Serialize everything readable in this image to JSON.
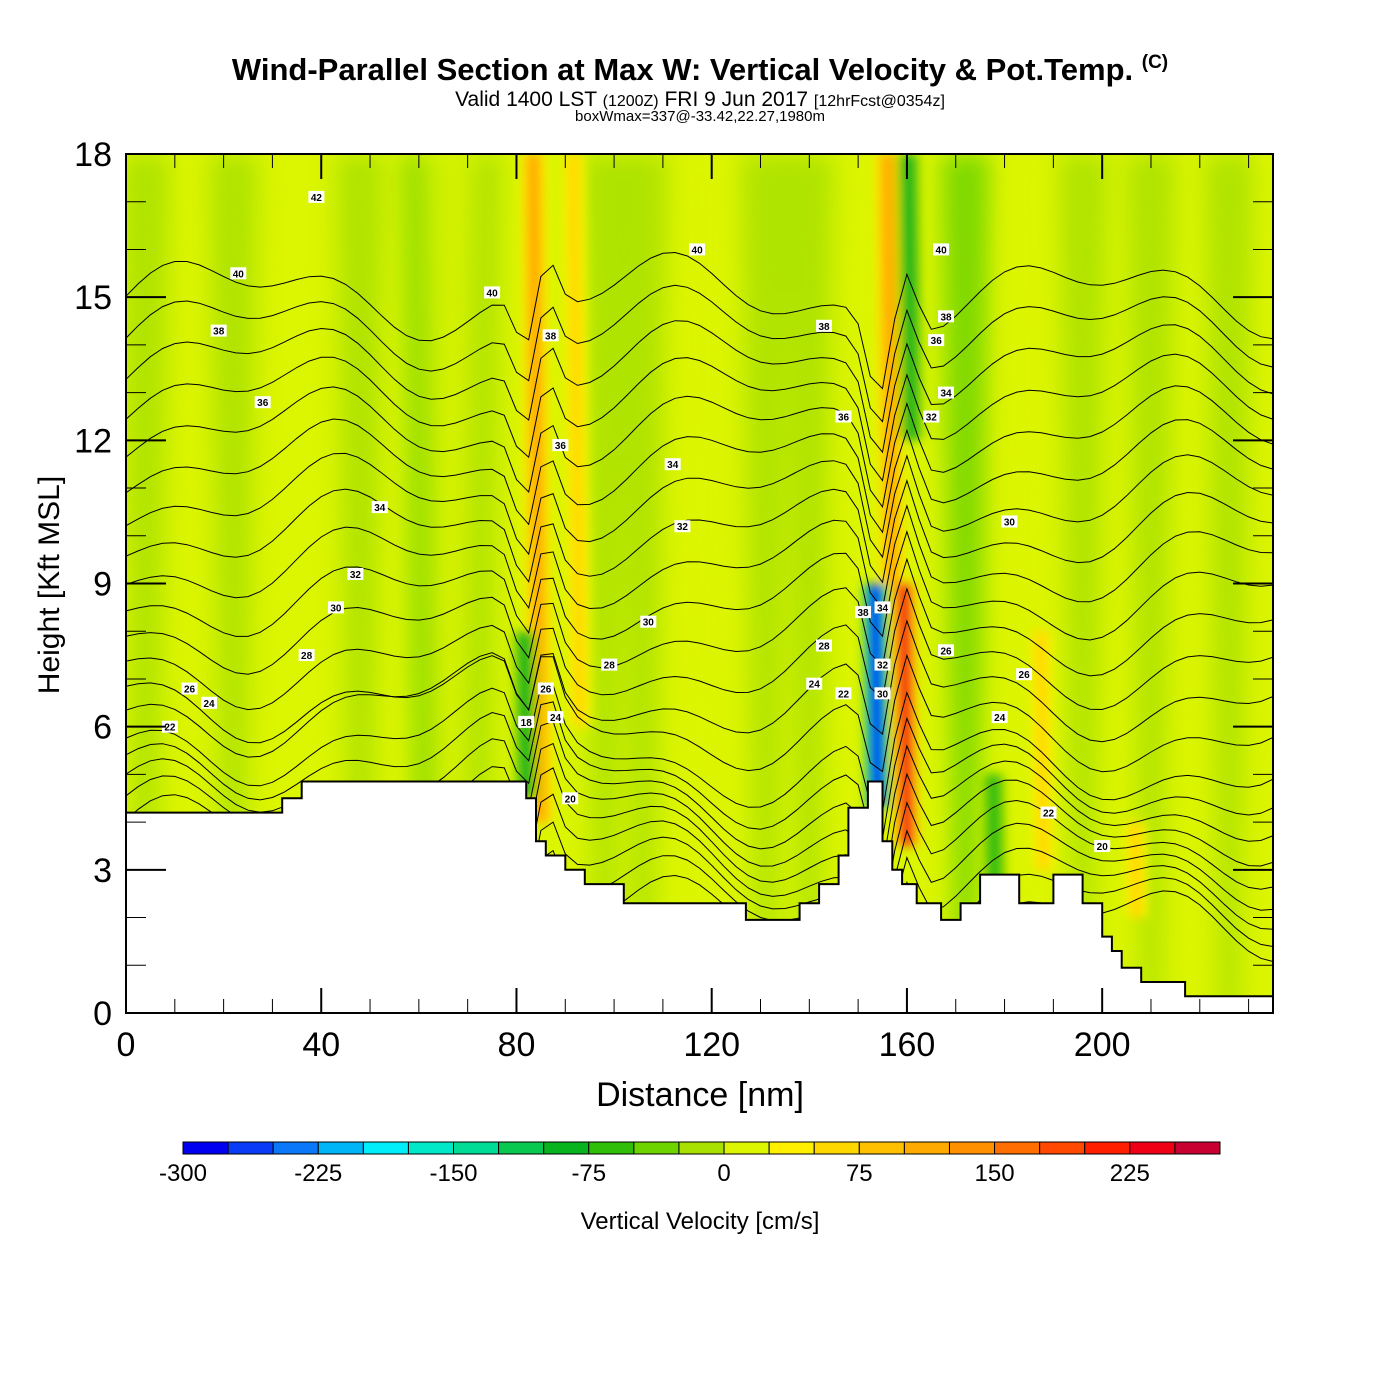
{
  "header": {
    "title": "Wind-Parallel Section at Max W: Vertical Velocity & Pot.Temp.",
    "copyright": "(C)",
    "valid_prefix": "Valid 1400 LST",
    "valid_utc": "(1200Z)",
    "valid_date": "FRI 9 Jun 2017",
    "forecast": "[12hrFcst@0354z]",
    "boxwmax": "boxWmax=337@-33.42,22.27,1980m"
  },
  "chart_data": {
    "type": "heatmap",
    "title": "Wind-Parallel Section at Max W: Vertical Velocity & Pot.Temp.",
    "xlabel": "Distance [nm]",
    "ylabel": "Height [Kft MSL]",
    "xlim": [
      0,
      235
    ],
    "ylim": [
      0,
      18
    ],
    "x_ticks": [
      0,
      40,
      80,
      120,
      160,
      200
    ],
    "y_ticks": [
      0,
      3,
      6,
      9,
      12,
      15,
      18
    ],
    "colorbar": {
      "label": "Vertical Velocity [cm/s]",
      "min": -300,
      "step": 25,
      "tick_labels": [
        -300,
        -225,
        -150,
        -75,
        0,
        75,
        150,
        225
      ],
      "colors": [
        "#0000f0",
        "#0a3cf8",
        "#0a78f8",
        "#00b4f8",
        "#00eefa",
        "#00e8c8",
        "#00dc96",
        "#08c850",
        "#08b41e",
        "#30be08",
        "#6ed400",
        "#a8e000",
        "#dcf500",
        "#fff000",
        "#ffd700",
        "#ffc000",
        "#ffaa00",
        "#ff9000",
        "#ff6e00",
        "#ff4800",
        "#ff1e00",
        "#f00014",
        "#c80032"
      ]
    },
    "terrain_profile_kft": {
      "x": [
        0,
        32,
        32,
        36,
        36,
        82,
        82,
        84,
        84,
        86,
        86,
        90,
        90,
        94,
        94,
        102,
        102,
        127,
        127,
        138,
        138,
        142,
        142,
        146,
        146,
        148,
        148,
        152,
        152,
        155,
        155,
        157,
        157,
        159,
        159,
        162,
        162,
        167,
        167,
        171,
        171,
        175,
        175,
        183,
        183,
        190,
        190,
        196,
        196,
        200,
        200,
        202,
        202,
        204,
        204,
        208,
        208,
        217,
        217,
        235
      ],
      "y": [
        4.2,
        4.2,
        4.5,
        4.5,
        4.85,
        4.85,
        4.5,
        4.5,
        3.6,
        3.6,
        3.3,
        3.3,
        3.0,
        3.0,
        2.7,
        2.7,
        2.3,
        2.3,
        1.95,
        1.95,
        2.3,
        2.3,
        2.7,
        2.7,
        3.3,
        3.3,
        4.3,
        4.3,
        4.85,
        4.85,
        3.6,
        3.6,
        3.0,
        3.0,
        2.7,
        2.7,
        2.3,
        2.3,
        1.95,
        1.95,
        2.3,
        2.3,
        2.9,
        2.9,
        2.3,
        2.3,
        2.9,
        2.9,
        2.3,
        2.3,
        1.6,
        1.6,
        1.3,
        1.3,
        0.95,
        0.95,
        0.65,
        0.65,
        0.35,
        0.35
      ]
    },
    "updraft_cores": [
      {
        "x": 85,
        "y_top": 18,
        "y_bottom": 4,
        "value": 100
      },
      {
        "x": 93,
        "y_top": 18,
        "y_bottom": 6,
        "value": 60
      },
      {
        "x": 160,
        "y_top": 9,
        "y_bottom": 3.5,
        "value": 225
      },
      {
        "x": 157,
        "y_top": 18,
        "y_bottom": 9,
        "value": 100
      },
      {
        "x": 188,
        "y_top": 8,
        "y_bottom": 3,
        "value": 60
      },
      {
        "x": 207,
        "y_top": 4,
        "y_bottom": 2,
        "value": 50
      }
    ],
    "downdraft_cores": [
      {
        "x": 82,
        "y_top": 8,
        "y_bottom": 4.5,
        "value": -90
      },
      {
        "x": 154,
        "y_top": 9,
        "y_bottom": 4.3,
        "value": -300
      },
      {
        "x": 161,
        "y_top": 18,
        "y_bottom": 12,
        "value": -100
      },
      {
        "x": 178,
        "y_top": 5,
        "y_bottom": 2.5,
        "value": -75
      }
    ],
    "theta_contours": {
      "units": "C (potential temperature)",
      "levels": [
        20,
        21,
        22,
        23,
        24,
        25,
        26,
        27,
        28,
        29,
        30,
        31,
        32,
        33,
        34,
        35,
        36,
        37,
        38,
        39,
        40,
        41,
        42
      ],
      "labels": [
        {
          "x": 39,
          "y": 17.1,
          "text": "42"
        },
        {
          "x": 23,
          "y": 15.5,
          "text": "40"
        },
        {
          "x": 75,
          "y": 15.1,
          "text": "40"
        },
        {
          "x": 117,
          "y": 16.0,
          "text": "40"
        },
        {
          "x": 167,
          "y": 16.0,
          "text": "40"
        },
        {
          "x": 19,
          "y": 14.3,
          "text": "38"
        },
        {
          "x": 87,
          "y": 14.2,
          "text": "38"
        },
        {
          "x": 143,
          "y": 14.4,
          "text": "38"
        },
        {
          "x": 168,
          "y": 14.6,
          "text": "38"
        },
        {
          "x": 28,
          "y": 12.8,
          "text": "36"
        },
        {
          "x": 89,
          "y": 11.9,
          "text": "36"
        },
        {
          "x": 147,
          "y": 12.5,
          "text": "36"
        },
        {
          "x": 166,
          "y": 14.1,
          "text": "36"
        },
        {
          "x": 52,
          "y": 10.6,
          "text": "34"
        },
        {
          "x": 112,
          "y": 11.5,
          "text": "34"
        },
        {
          "x": 168,
          "y": 13.0,
          "text": "34"
        },
        {
          "x": 114,
          "y": 10.2,
          "text": "32"
        },
        {
          "x": 47,
          "y": 9.2,
          "text": "32"
        },
        {
          "x": 165,
          "y": 12.5,
          "text": "32"
        },
        {
          "x": 43,
          "y": 8.5,
          "text": "30"
        },
        {
          "x": 107,
          "y": 8.2,
          "text": "30"
        },
        {
          "x": 181,
          "y": 10.3,
          "text": "30"
        },
        {
          "x": 37,
          "y": 7.5,
          "text": "28"
        },
        {
          "x": 99,
          "y": 7.3,
          "text": "28"
        },
        {
          "x": 143,
          "y": 7.7,
          "text": "28"
        },
        {
          "x": 151,
          "y": 8.4,
          "text": "38"
        },
        {
          "x": 155,
          "y": 8.5,
          "text": "34"
        },
        {
          "x": 13,
          "y": 6.8,
          "text": "26"
        },
        {
          "x": 86,
          "y": 6.8,
          "text": "26"
        },
        {
          "x": 168,
          "y": 7.6,
          "text": "26"
        },
        {
          "x": 184,
          "y": 7.1,
          "text": "26"
        },
        {
          "x": 17,
          "y": 6.5,
          "text": "24"
        },
        {
          "x": 88,
          "y": 6.2,
          "text": "24"
        },
        {
          "x": 141,
          "y": 6.9,
          "text": "24"
        },
        {
          "x": 179,
          "y": 6.2,
          "text": "24"
        },
        {
          "x": 9,
          "y": 6.0,
          "text": "22"
        },
        {
          "x": 147,
          "y": 6.7,
          "text": "22"
        },
        {
          "x": 189,
          "y": 4.2,
          "text": "22"
        },
        {
          "x": 155,
          "y": 7.3,
          "text": "32"
        },
        {
          "x": 155,
          "y": 6.7,
          "text": "30"
        },
        {
          "x": 82,
          "y": 6.1,
          "text": "18"
        },
        {
          "x": 91,
          "y": 4.5,
          "text": "20"
        },
        {
          "x": 200,
          "y": 3.5,
          "text": "20"
        }
      ]
    },
    "grid": false,
    "legend": "bottom"
  }
}
